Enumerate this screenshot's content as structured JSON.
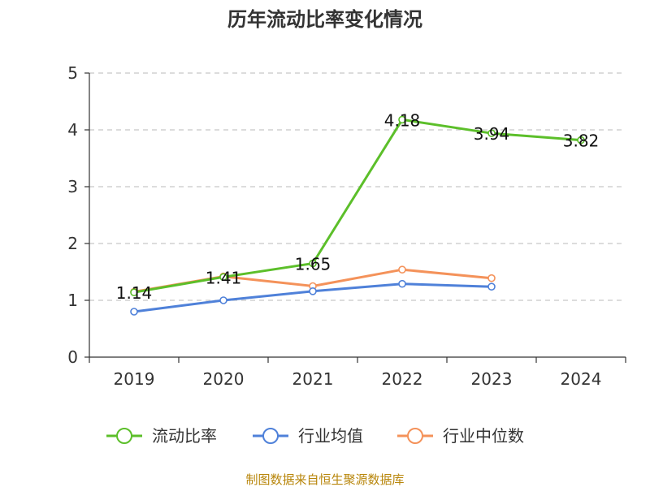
{
  "chart_data": {
    "type": "line",
    "title": "历年流动比率变化情况",
    "categories": [
      "2019",
      "2020",
      "2021",
      "2022",
      "2023",
      "2024"
    ],
    "ylim": [
      0,
      5
    ],
    "yticks": [
      "0",
      "1",
      "2",
      "3",
      "4",
      "5"
    ],
    "grid": true,
    "legend_position": "bottom",
    "series": [
      {
        "name": "流动比率",
        "color": "#5cbf2a",
        "values": [
          1.14,
          1.41,
          1.65,
          4.18,
          3.94,
          3.82
        ],
        "labels": [
          "1.14",
          "1.41",
          "1.65",
          "4.18",
          "3.94",
          "3.82"
        ]
      },
      {
        "name": "行业均值",
        "color": "#4f81d9",
        "values": [
          0.8,
          1.0,
          1.16,
          1.29,
          1.24,
          null
        ]
      },
      {
        "name": "行业中位数",
        "color": "#f4925a",
        "values": [
          1.15,
          1.42,
          1.25,
          1.54,
          1.39,
          null
        ]
      }
    ]
  },
  "source": "制图数据来自恒生聚源数据库"
}
